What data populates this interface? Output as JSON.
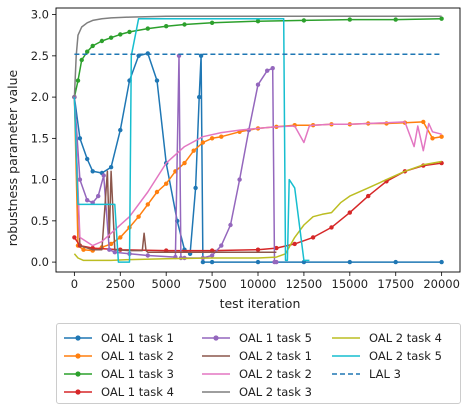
{
  "chart_data": {
    "type": "line",
    "xlabel": "test iteration",
    "ylabel": "robustness parameter value",
    "xlim": [
      -1000,
      21000
    ],
    "ylim": [
      -0.12,
      3.08
    ],
    "xticks": [
      0,
      2500,
      5000,
      7500,
      10000,
      12500,
      15000,
      17500,
      20000
    ],
    "xtick_labels": [
      "0",
      "2500",
      "5000",
      "7500",
      "10000",
      "12500",
      "15000",
      "17500",
      "20000"
    ],
    "yticks": [
      0.0,
      0.5,
      1.0,
      1.5,
      2.0,
      2.5,
      3.0
    ],
    "ytick_labels": [
      "0.0",
      "0.5",
      "1.0",
      "1.5",
      "2.0",
      "2.5",
      "3.0"
    ],
    "grid": false,
    "legend_placement": "below plot",
    "series": [
      {
        "name": "OAL 1 task 1",
        "color": "#1f77b4",
        "style": "solid",
        "marker": true,
        "x": [
          0,
          300,
          700,
          1000,
          1500,
          2000,
          2500,
          3000,
          3500,
          4000,
          4500,
          5000,
          5600,
          6000,
          6300,
          6600,
          6800,
          6900,
          7000,
          7500,
          10000,
          12500,
          15000,
          17500,
          20000
        ],
        "y": [
          2.0,
          1.5,
          1.25,
          1.1,
          1.08,
          1.15,
          1.6,
          2.2,
          2.5,
          2.53,
          2.2,
          1.2,
          0.5,
          0.15,
          0.1,
          0.9,
          2.0,
          2.5,
          0.0,
          0.0,
          0.0,
          0.0,
          0.0,
          0.0,
          0.0
        ]
      },
      {
        "name": "OAL 1 task 2",
        "color": "#ff7f0e",
        "style": "solid",
        "marker": true,
        "x": [
          0,
          200,
          500,
          1000,
          1500,
          2000,
          2500,
          3000,
          3500,
          4000,
          4500,
          5000,
          5500,
          6000,
          6500,
          7000,
          7500,
          8000,
          9000,
          10000,
          11000,
          12000,
          13000,
          14000,
          15000,
          16000,
          17000,
          18000,
          19000,
          19500,
          20000
        ],
        "y": [
          2.0,
          0.2,
          0.15,
          0.14,
          0.18,
          0.22,
          0.3,
          0.42,
          0.55,
          0.7,
          0.85,
          0.95,
          1.1,
          1.2,
          1.35,
          1.45,
          1.5,
          1.52,
          1.58,
          1.62,
          1.64,
          1.66,
          1.66,
          1.67,
          1.67,
          1.68,
          1.68,
          1.69,
          1.7,
          1.5,
          1.52
        ]
      },
      {
        "name": "OAL 1 task 3",
        "color": "#2ca02c",
        "style": "solid",
        "marker": true,
        "x": [
          0,
          200,
          400,
          700,
          1000,
          1500,
          2000,
          2500,
          3000,
          4000,
          5000,
          6000,
          7500,
          10000,
          12500,
          15000,
          17500,
          20000
        ],
        "y": [
          2.0,
          2.2,
          2.45,
          2.55,
          2.62,
          2.68,
          2.72,
          2.76,
          2.79,
          2.83,
          2.86,
          2.88,
          2.9,
          2.92,
          2.93,
          2.94,
          2.94,
          2.95
        ]
      },
      {
        "name": "OAL 1 task 4",
        "color": "#d62728",
        "style": "solid",
        "marker": true,
        "x": [
          0,
          300,
          1000,
          2500,
          5000,
          7500,
          10000,
          11000,
          12000,
          13000,
          14000,
          15000,
          16000,
          17000,
          18000,
          19000,
          20000
        ],
        "y": [
          0.3,
          0.2,
          0.17,
          0.15,
          0.14,
          0.14,
          0.15,
          0.17,
          0.22,
          0.3,
          0.42,
          0.6,
          0.8,
          0.98,
          1.1,
          1.17,
          1.2
        ]
      },
      {
        "name": "OAL 1 task 5",
        "color": "#9467bd",
        "style": "solid",
        "marker": true,
        "x": [
          0,
          300,
          700,
          1000,
          1300,
          1600,
          1900,
          2200,
          3000,
          4000,
          5500,
          5700,
          5800,
          6000,
          7000,
          7500,
          8000,
          8500,
          9000,
          9500,
          10000,
          10500,
          10800,
          10900,
          11000
        ],
        "y": [
          2.0,
          1.0,
          0.75,
          0.72,
          0.8,
          1.05,
          0.15,
          0.12,
          0.1,
          0.08,
          0.06,
          2.5,
          0.05,
          0.05,
          0.05,
          0.08,
          0.2,
          0.45,
          1.0,
          1.6,
          2.15,
          2.32,
          2.35,
          0.0,
          0.0
        ]
      },
      {
        "name": "OAL 2 task 1",
        "color": "#8c564b",
        "style": "solid",
        "marker": false,
        "x": [
          0,
          300,
          1000,
          1500,
          1800,
          1900,
          2000,
          2200,
          3000,
          3700,
          3800,
          3900,
          4000,
          5000,
          7500,
          10000,
          11000
        ],
        "y": [
          2.0,
          0.2,
          0.15,
          0.15,
          1.1,
          0.3,
          1.1,
          0.15,
          0.14,
          0.14,
          0.35,
          0.14,
          0.12,
          0.12,
          0.12,
          0.12,
          0.12
        ]
      },
      {
        "name": "OAL 2 task 2",
        "color": "#e377c2",
        "style": "solid",
        "marker": false,
        "x": [
          0,
          300,
          1000,
          1500,
          2000,
          3000,
          4000,
          5000,
          6000,
          7000,
          8000,
          9000,
          10000,
          11000,
          12000,
          12500,
          12800,
          13000,
          14000,
          15000,
          16000,
          17000,
          18000,
          18500,
          18700,
          19000,
          19300,
          19500,
          20000
        ],
        "y": [
          2.0,
          0.3,
          0.2,
          0.25,
          0.35,
          0.55,
          0.85,
          1.2,
          1.4,
          1.52,
          1.57,
          1.6,
          1.62,
          1.64,
          1.65,
          1.45,
          1.65,
          1.66,
          1.67,
          1.67,
          1.68,
          1.69,
          1.7,
          1.4,
          1.65,
          1.35,
          1.68,
          1.58,
          1.55
        ]
      },
      {
        "name": "OAL 2 task 3",
        "color": "#7f7f7f",
        "style": "solid",
        "marker": false,
        "x": [
          0,
          100,
          200,
          400,
          700,
          1000,
          1500,
          2000,
          3000,
          5000,
          7500,
          10000,
          15000,
          20000
        ],
        "y": [
          2.0,
          2.5,
          2.75,
          2.85,
          2.9,
          2.93,
          2.95,
          2.96,
          2.97,
          2.98,
          2.98,
          2.98,
          2.98,
          2.98
        ]
      },
      {
        "name": "OAL 2 task 4",
        "color": "#bcbd22",
        "style": "solid",
        "marker": false,
        "x": [
          0,
          200,
          500,
          1000,
          2000,
          3000,
          5000,
          7500,
          10000,
          11000,
          11500,
          12000,
          12500,
          13000,
          13500,
          14000,
          14500,
          15000,
          16000,
          17000,
          18000,
          19000,
          20000
        ],
        "y": [
          0.1,
          0.05,
          0.02,
          0.02,
          0.02,
          0.03,
          0.04,
          0.05,
          0.05,
          0.06,
          0.1,
          0.3,
          0.45,
          0.55,
          0.58,
          0.6,
          0.72,
          0.8,
          0.9,
          1.0,
          1.1,
          1.18,
          1.22
        ]
      },
      {
        "name": "OAL 2 task 5",
        "color": "#17becf",
        "style": "solid",
        "marker": false,
        "x": [
          0,
          200,
          500,
          1500,
          2200,
          2400,
          2500,
          3000,
          3100,
          3500,
          5000,
          7500,
          10000,
          11400,
          11500,
          11600,
          11700,
          12000,
          12500,
          12800
        ],
        "y": [
          2.0,
          0.7,
          0.7,
          0.7,
          0.7,
          0.0,
          0.0,
          0.0,
          2.5,
          2.95,
          2.95,
          2.95,
          2.95,
          2.95,
          0.02,
          0.02,
          1.0,
          0.9,
          0.02,
          0.02
        ]
      },
      {
        "name": "LAL 3",
        "color": "#1f77b4",
        "style": "dashed",
        "marker": false,
        "x": [
          0,
          20000
        ],
        "y": [
          2.52,
          2.52
        ]
      }
    ]
  }
}
